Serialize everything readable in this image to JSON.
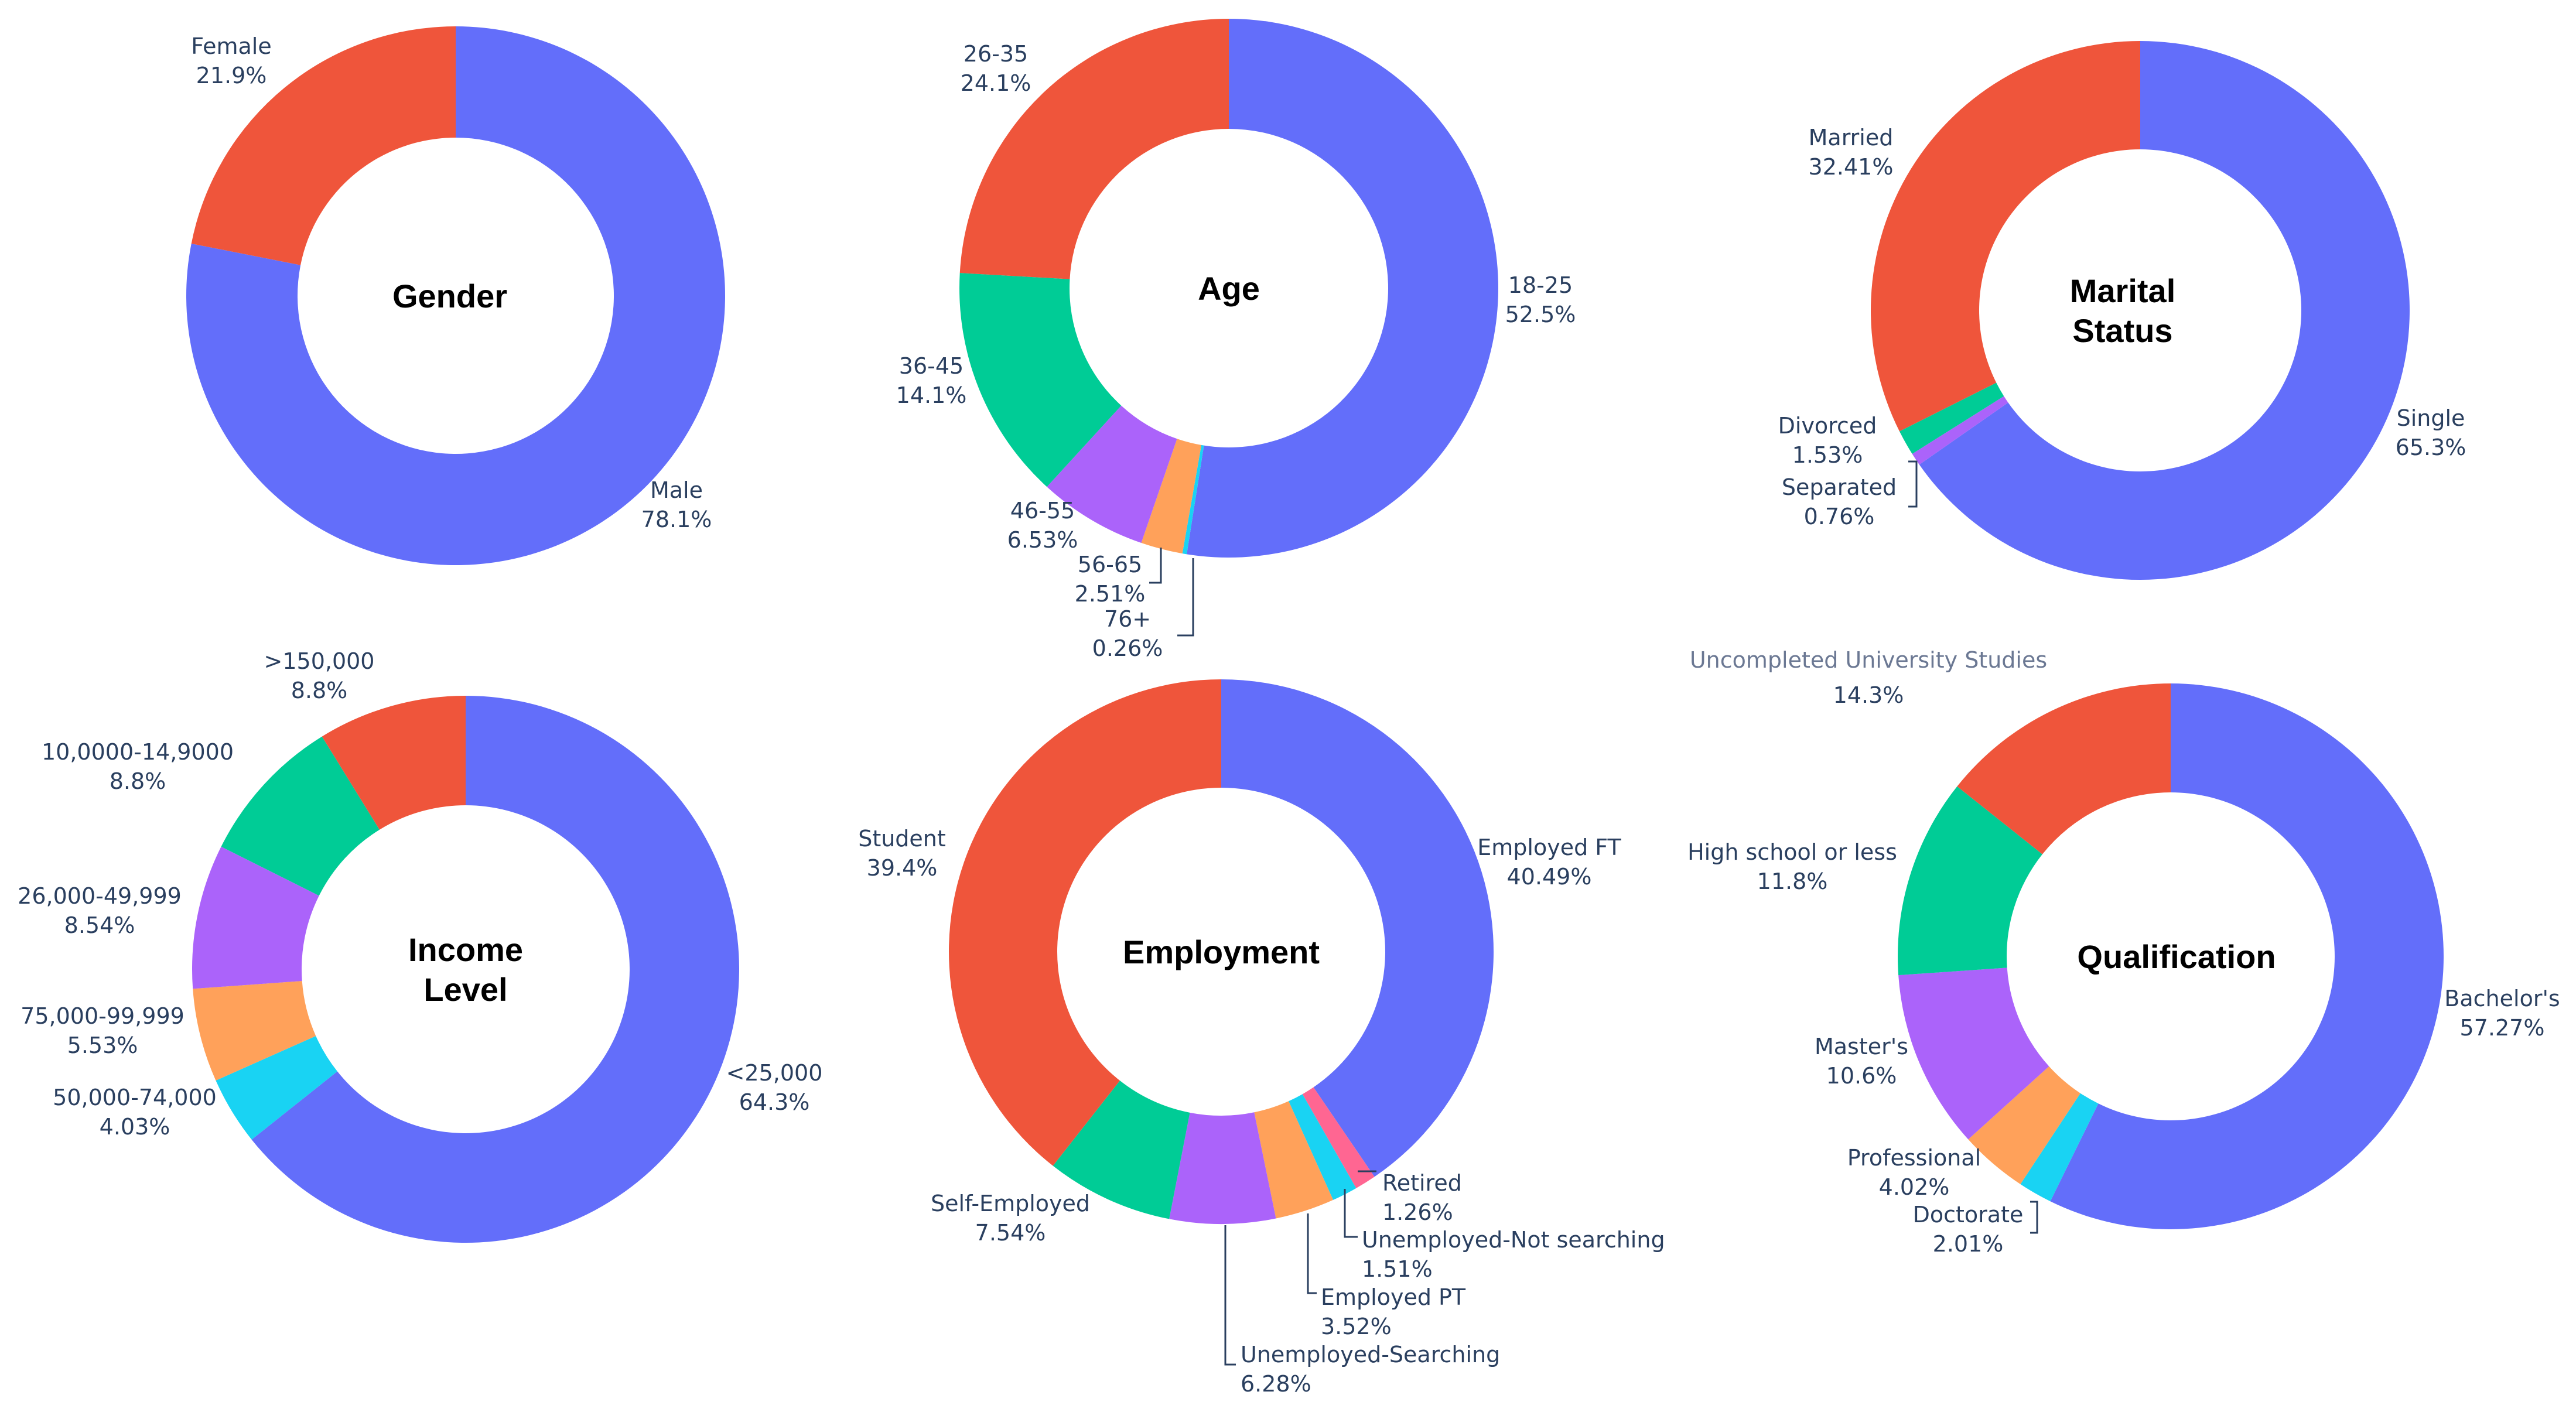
{
  "chart_data": [
    {
      "type": "pie",
      "id": "gender",
      "title": [
        "Gender"
      ],
      "slices": [
        {
          "label": "Male",
          "value": 78.1,
          "display": "78.1%",
          "color": "#636efa"
        },
        {
          "label": "Female",
          "value": 21.9,
          "display": "21.9%",
          "color": "#ef553b"
        }
      ]
    },
    {
      "type": "pie",
      "id": "age",
      "title": [
        "Age"
      ],
      "slices": [
        {
          "label": "18-25",
          "value": 52.5,
          "display": "52.5%",
          "color": "#636efa"
        },
        {
          "label": "76+",
          "value": 0.26,
          "display": "0.26%",
          "color": "#19d3f3"
        },
        {
          "label": "56-65",
          "value": 2.51,
          "display": "2.51%",
          "color": "#ffa15a"
        },
        {
          "label": "46-55",
          "value": 6.53,
          "display": "6.53%",
          "color": "#ab63fa"
        },
        {
          "label": "36-45",
          "value": 14.1,
          "display": "14.1%",
          "color": "#00cc96"
        },
        {
          "label": "26-35",
          "value": 24.1,
          "display": "24.1%",
          "color": "#ef553b"
        }
      ]
    },
    {
      "type": "pie",
      "id": "marital-status",
      "title": [
        "Marital",
        "Status"
      ],
      "slices": [
        {
          "label": "Single",
          "value": 65.3,
          "display": "65.3%",
          "color": "#636efa"
        },
        {
          "label": "Separated",
          "value": 0.76,
          "display": "0.76%",
          "color": "#ab63fa"
        },
        {
          "label": "Divorced",
          "value": 1.53,
          "display": "1.53%",
          "color": "#00cc96"
        },
        {
          "label": "Married",
          "value": 32.41,
          "display": "32.41%",
          "color": "#ef553b"
        }
      ]
    },
    {
      "type": "pie",
      "id": "income-level",
      "title": [
        "Income",
        "Level"
      ],
      "slices": [
        {
          "label": "<25,000",
          "value": 64.3,
          "display": "64.3%",
          "color": "#636efa"
        },
        {
          "label": "50,000-74,000",
          "value": 4.03,
          "display": "4.03%",
          "color": "#19d3f3"
        },
        {
          "label": "75,000-99,999",
          "value": 5.53,
          "display": "5.53%",
          "color": "#ffa15a"
        },
        {
          "label": "26,000-49,999",
          "value": 8.54,
          "display": "8.54%",
          "color": "#ab63fa"
        },
        {
          "label": "10,0000-14,9000",
          "value": 8.8,
          "display": "8.8%",
          "color": "#00cc96"
        },
        {
          "label": ">150,000",
          "value": 8.8,
          "display": "8.8%",
          "color": "#ef553b"
        }
      ]
    },
    {
      "type": "pie",
      "id": "employment",
      "title": [
        "Employment"
      ],
      "slices": [
        {
          "label": "Employed FT",
          "value": 40.49,
          "display": "40.49%",
          "color": "#636efa"
        },
        {
          "label": "Retired",
          "value": 1.26,
          "display": "1.26%",
          "color": "#ff6692"
        },
        {
          "label": "Unemployed-Not searching",
          "value": 1.51,
          "display": "1.51%",
          "color": "#19d3f3"
        },
        {
          "label": "Employed PT",
          "value": 3.52,
          "display": "3.52%",
          "color": "#ffa15a"
        },
        {
          "label": "Unemployed-Searching",
          "value": 6.28,
          "display": "6.28%",
          "color": "#ab63fa"
        },
        {
          "label": "Self-Employed",
          "value": 7.54,
          "display": "7.54%",
          "color": "#00cc96"
        },
        {
          "label": "Student",
          "value": 39.4,
          "display": "39.4%",
          "color": "#ef553b"
        }
      ]
    },
    {
      "type": "pie",
      "id": "qualification",
      "title": [
        "Qualification"
      ],
      "slices": [
        {
          "label": "Bachelor's",
          "value": 57.27,
          "display": "57.27%",
          "color": "#636efa"
        },
        {
          "label": "Doctorate",
          "value": 2.01,
          "display": "2.01%",
          "color": "#19d3f3"
        },
        {
          "label": "Professional",
          "value": 4.02,
          "display": "4.02%",
          "color": "#ffa15a"
        },
        {
          "label": "Master's",
          "value": 10.6,
          "display": "10.6%",
          "color": "#ab63fa"
        },
        {
          "label": "High school or less",
          "value": 11.8,
          "display": "11.8%",
          "color": "#00cc96"
        },
        {
          "label": "Uncompleted University Studies",
          "value": 14.3,
          "display": "14.3%",
          "color": "#ef553b"
        }
      ]
    }
  ]
}
